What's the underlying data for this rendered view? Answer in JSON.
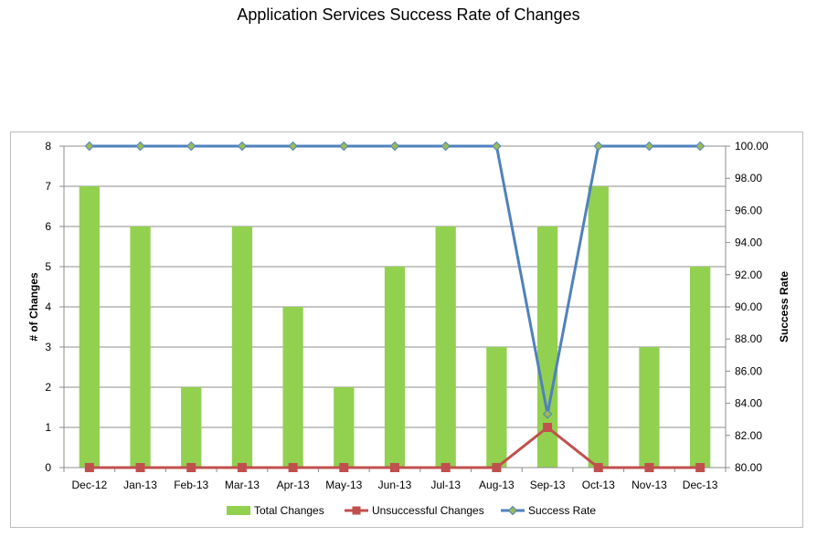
{
  "chart_data": {
    "type": "bar",
    "title": "Application Services Success Rate of Changes",
    "categories": [
      "Dec-12",
      "Jan-13",
      "Feb-13",
      "Mar-13",
      "Apr-13",
      "May-13",
      "Jun-13",
      "Jul-13",
      "Aug-13",
      "Sep-13",
      "Oct-13",
      "Nov-13",
      "Dec-13"
    ],
    "ylabel": "# of Changes",
    "ylabel_right": "Success Rate",
    "ylim": [
      0,
      8
    ],
    "ylim_right": [
      80,
      100
    ],
    "y_ticks": [
      "0",
      "1",
      "2",
      "3",
      "4",
      "5",
      "6",
      "7",
      "8"
    ],
    "y_right_ticks": [
      "80.00",
      "82.00",
      "84.00",
      "86.00",
      "88.00",
      "90.00",
      "92.00",
      "94.00",
      "96.00",
      "98.00",
      "100.00"
    ],
    "grid": true,
    "legend_position": "bottom",
    "series": [
      {
        "name": "Total Changes",
        "type": "bar",
        "axis": "left",
        "color": "#92d050",
        "values": [
          7,
          6,
          2,
          6,
          4,
          2,
          5,
          6,
          3,
          6,
          7,
          3,
          5
        ]
      },
      {
        "name": "Unsuccessful Changes",
        "type": "line",
        "axis": "left",
        "color": "#c0504d",
        "marker": "square",
        "values": [
          0,
          0,
          0,
          0,
          0,
          0,
          0,
          0,
          0,
          1,
          0,
          0,
          0
        ]
      },
      {
        "name": "Success Rate",
        "type": "line",
        "axis": "right",
        "color": "#4f81bd",
        "marker_color": "#9bbb59",
        "marker": "diamond",
        "values": [
          100,
          100,
          100,
          100,
          100,
          100,
          100,
          100,
          100,
          83.33,
          100,
          100,
          100
        ]
      }
    ]
  }
}
